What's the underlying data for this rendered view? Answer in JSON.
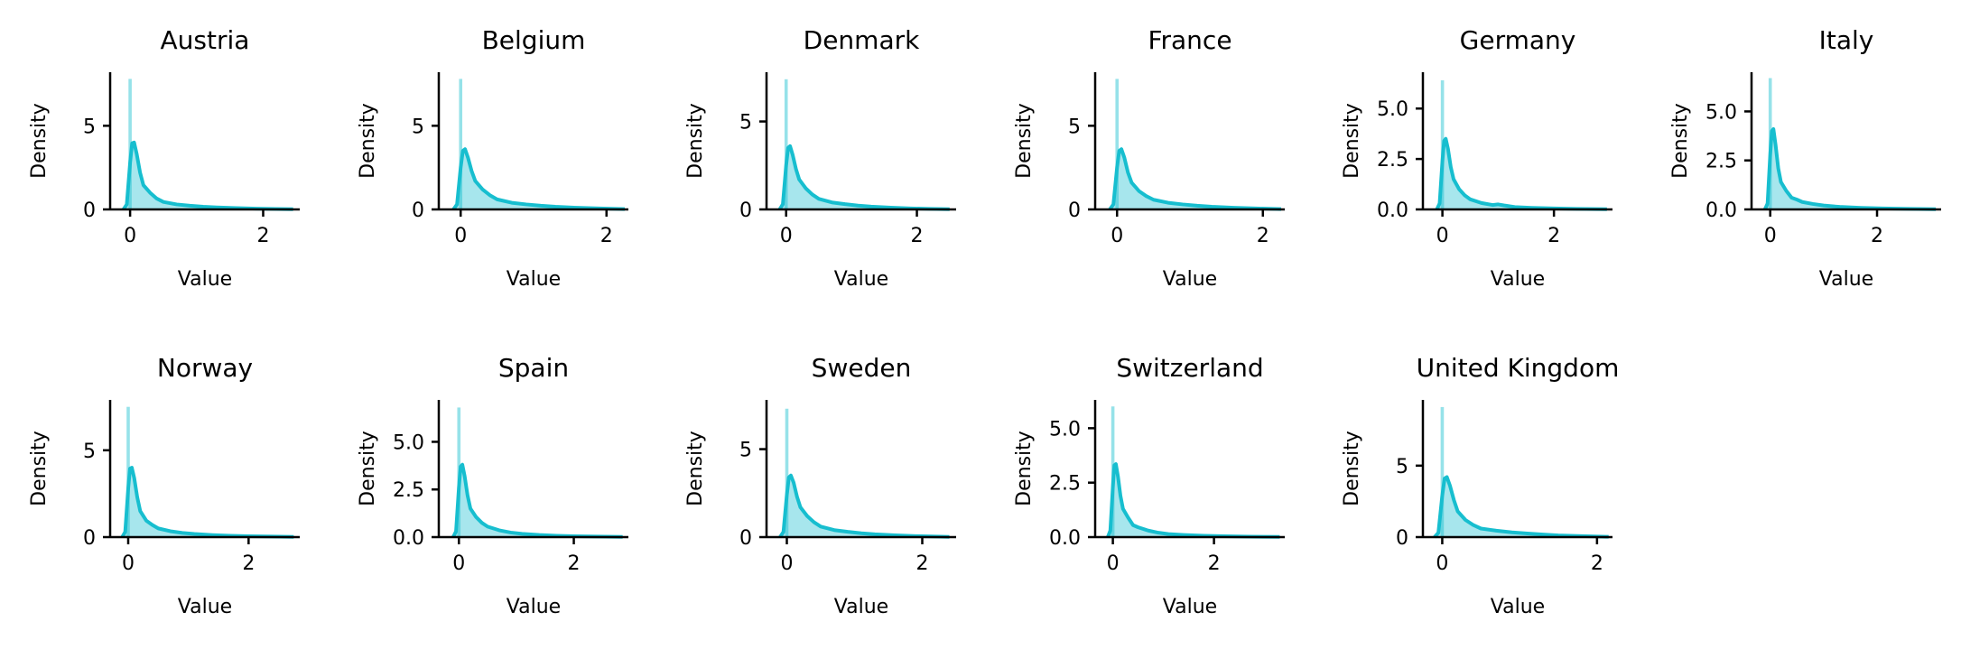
{
  "colors": {
    "line": "#17becf",
    "fill": "#17becf",
    "spike": "#17becf"
  },
  "chart_data": [
    {
      "type": "area",
      "title": "Austria",
      "xlabel": "Value",
      "ylabel": "Density",
      "xlim": [
        -0.3,
        2.55
      ],
      "ylim": [
        0,
        8.2
      ],
      "xticks": [
        0,
        2
      ],
      "yticks": [
        0,
        5
      ],
      "ytick_labels": [
        "0",
        "5"
      ],
      "x_max": 2.45,
      "peak": 4.0,
      "spike": 7.8,
      "curve": {
        "x": [
          -0.1,
          -0.05,
          0,
          0.03,
          0.06,
          0.1,
          0.15,
          0.2,
          0.3,
          0.4,
          0.5,
          0.7,
          0.9,
          1.1,
          1.3,
          1.6,
          1.9,
          2.2,
          2.45
        ],
        "y": [
          0,
          0.3,
          2.8,
          3.95,
          4.0,
          3.3,
          2.2,
          1.45,
          1.0,
          0.65,
          0.45,
          0.3,
          0.22,
          0.16,
          0.12,
          0.08,
          0.05,
          0.03,
          0.01
        ]
      }
    },
    {
      "type": "area",
      "title": "Belgium",
      "xlabel": "Value",
      "ylabel": "Density",
      "xlim": [
        -0.3,
        2.3
      ],
      "ylim": [
        0,
        8.2
      ],
      "xticks": [
        0,
        2
      ],
      "yticks": [
        0,
        5
      ],
      "ytick_labels": [
        "0",
        "5"
      ],
      "x_max": 2.25,
      "peak": 3.6,
      "spike": 7.8,
      "curve": {
        "x": [
          -0.1,
          -0.05,
          0,
          0.03,
          0.06,
          0.1,
          0.15,
          0.2,
          0.3,
          0.4,
          0.5,
          0.7,
          0.9,
          1.1,
          1.3,
          1.6,
          1.9,
          2.25
        ],
        "y": [
          0,
          0.3,
          2.5,
          3.5,
          3.6,
          3.1,
          2.3,
          1.7,
          1.2,
          0.85,
          0.6,
          0.4,
          0.3,
          0.22,
          0.16,
          0.1,
          0.06,
          0.02
        ]
      }
    },
    {
      "type": "area",
      "title": "Denmark",
      "xlabel": "Value",
      "ylabel": "Density",
      "xlim": [
        -0.3,
        2.6
      ],
      "ylim": [
        0,
        7.8
      ],
      "xticks": [
        0,
        2
      ],
      "yticks": [
        0,
        5
      ],
      "ytick_labels": [
        "0",
        "5"
      ],
      "x_max": 2.5,
      "peak": 3.6,
      "spike": 7.4,
      "curve": {
        "x": [
          -0.1,
          -0.05,
          0,
          0.03,
          0.06,
          0.1,
          0.15,
          0.2,
          0.3,
          0.4,
          0.5,
          0.7,
          0.9,
          1.1,
          1.3,
          1.6,
          1.9,
          2.2,
          2.5
        ],
        "y": [
          0,
          0.3,
          2.5,
          3.5,
          3.6,
          3.1,
          2.3,
          1.7,
          1.2,
          0.85,
          0.6,
          0.4,
          0.3,
          0.22,
          0.16,
          0.1,
          0.06,
          0.03,
          0.01
        ]
      }
    },
    {
      "type": "area",
      "title": "France",
      "xlabel": "Value",
      "ylabel": "Density",
      "xlim": [
        -0.3,
        2.3
      ],
      "ylim": [
        0,
        8.2
      ],
      "xticks": [
        0,
        2
      ],
      "yticks": [
        0,
        5
      ],
      "ytick_labels": [
        "0",
        "5"
      ],
      "x_max": 2.25,
      "peak": 3.6,
      "spike": 7.8,
      "curve": {
        "x": [
          -0.1,
          -0.05,
          0,
          0.03,
          0.06,
          0.1,
          0.15,
          0.2,
          0.3,
          0.4,
          0.5,
          0.7,
          0.9,
          1.1,
          1.3,
          1.6,
          1.9,
          2.25
        ],
        "y": [
          0,
          0.3,
          2.5,
          3.5,
          3.6,
          3.1,
          2.2,
          1.6,
          1.1,
          0.8,
          0.58,
          0.4,
          0.3,
          0.22,
          0.16,
          0.1,
          0.06,
          0.02
        ]
      }
    },
    {
      "type": "area",
      "title": "Germany",
      "xlabel": "Value",
      "ylabel": "Density",
      "xlim": [
        -0.35,
        3.05
      ],
      "ylim": [
        0,
        6.8
      ],
      "xticks": [
        0,
        2
      ],
      "yticks": [
        0,
        2.5,
        5
      ],
      "ytick_labels": [
        "0.0",
        "2.5",
        "5.0"
      ],
      "x_max": 2.95,
      "peak": 3.5,
      "spike": 6.4,
      "curve": {
        "x": [
          -0.1,
          -0.05,
          0,
          0.03,
          0.06,
          0.1,
          0.15,
          0.2,
          0.3,
          0.4,
          0.5,
          0.7,
          0.9,
          1.0,
          1.1,
          1.3,
          1.6,
          2.0,
          2.4,
          2.95
        ],
        "y": [
          0,
          0.3,
          2.4,
          3.4,
          3.5,
          3.0,
          2.1,
          1.5,
          1.0,
          0.7,
          0.5,
          0.32,
          0.22,
          0.25,
          0.2,
          0.12,
          0.08,
          0.05,
          0.03,
          0.01
        ]
      }
    },
    {
      "type": "area",
      "title": "Italy",
      "xlabel": "Value",
      "ylabel": "Density",
      "xlim": [
        -0.35,
        3.2
      ],
      "ylim": [
        0,
        7.0
      ],
      "xticks": [
        0,
        2
      ],
      "yticks": [
        0,
        2.5,
        5
      ],
      "ytick_labels": [
        "0.0",
        "2.5",
        "5.0"
      ],
      "x_max": 3.1,
      "peak": 4.1,
      "spike": 6.7,
      "curve": {
        "x": [
          -0.1,
          -0.05,
          0,
          0.03,
          0.06,
          0.1,
          0.15,
          0.2,
          0.3,
          0.4,
          0.5,
          0.6,
          0.8,
          1.0,
          1.3,
          1.7,
          2.1,
          2.6,
          3.1
        ],
        "y": [
          0,
          0.3,
          2.8,
          4.0,
          4.1,
          3.3,
          2.1,
          1.4,
          0.95,
          0.6,
          0.5,
          0.38,
          0.28,
          0.2,
          0.13,
          0.08,
          0.05,
          0.03,
          0.01
        ]
      }
    },
    {
      "type": "area",
      "title": "Norway",
      "xlabel": "Value",
      "ylabel": "Density",
      "xlim": [
        -0.3,
        2.85
      ],
      "ylim": [
        0,
        7.9
      ],
      "xticks": [
        0,
        2
      ],
      "yticks": [
        0,
        5
      ],
      "ytick_labels": [
        "0",
        "5"
      ],
      "x_max": 2.75,
      "peak": 4.0,
      "spike": 7.5,
      "curve": {
        "x": [
          -0.1,
          -0.05,
          0,
          0.03,
          0.06,
          0.1,
          0.15,
          0.2,
          0.3,
          0.4,
          0.5,
          0.7,
          0.9,
          1.1,
          1.4,
          1.7,
          2.0,
          2.4,
          2.75
        ],
        "y": [
          0,
          0.3,
          2.8,
          3.95,
          4.0,
          3.4,
          2.3,
          1.5,
          0.95,
          0.7,
          0.5,
          0.34,
          0.24,
          0.18,
          0.12,
          0.08,
          0.05,
          0.03,
          0.01
        ]
      }
    },
    {
      "type": "area",
      "title": "Spain",
      "xlabel": "Value",
      "ylabel": "Density",
      "xlim": [
        -0.35,
        2.95
      ],
      "ylim": [
        0,
        7.2
      ],
      "xticks": [
        0,
        2
      ],
      "yticks": [
        0,
        2.5,
        5
      ],
      "ytick_labels": [
        "0.0",
        "2.5",
        "5.0"
      ],
      "x_max": 2.85,
      "peak": 3.8,
      "spike": 6.8,
      "curve": {
        "x": [
          -0.1,
          -0.05,
          0,
          0.03,
          0.06,
          0.1,
          0.15,
          0.2,
          0.3,
          0.4,
          0.5,
          0.7,
          0.9,
          1.1,
          1.4,
          1.7,
          2.0,
          2.4,
          2.85
        ],
        "y": [
          0,
          0.3,
          2.6,
          3.7,
          3.8,
          3.2,
          2.2,
          1.5,
          1.05,
          0.75,
          0.55,
          0.36,
          0.24,
          0.17,
          0.11,
          0.07,
          0.05,
          0.03,
          0.01
        ]
      }
    },
    {
      "type": "area",
      "title": "Sweden",
      "xlabel": "Value",
      "ylabel": "Density",
      "xlim": [
        -0.3,
        2.5
      ],
      "ylim": [
        0,
        7.8
      ],
      "xticks": [
        0,
        2
      ],
      "yticks": [
        0,
        5
      ],
      "ytick_labels": [
        "0",
        "5"
      ],
      "x_max": 2.4,
      "peak": 3.5,
      "spike": 7.3,
      "curve": {
        "x": [
          -0.1,
          -0.05,
          0,
          0.03,
          0.06,
          0.1,
          0.15,
          0.2,
          0.3,
          0.4,
          0.5,
          0.7,
          0.9,
          1.1,
          1.3,
          1.6,
          1.9,
          2.2,
          2.4
        ],
        "y": [
          0,
          0.3,
          2.4,
          3.4,
          3.5,
          3.1,
          2.3,
          1.7,
          1.2,
          0.85,
          0.6,
          0.4,
          0.3,
          0.22,
          0.16,
          0.1,
          0.06,
          0.03,
          0.01
        ]
      }
    },
    {
      "type": "area",
      "title": "Switzerland",
      "xlabel": "Value",
      "ylabel": "Density",
      "xlim": [
        -0.35,
        3.4
      ],
      "ylim": [
        0,
        6.3
      ],
      "xticks": [
        0,
        2
      ],
      "yticks": [
        0,
        2.5,
        5
      ],
      "ytick_labels": [
        "0.0",
        "2.5",
        "5.0"
      ],
      "x_max": 3.3,
      "peak": 3.35,
      "spike": 6.0,
      "curve": {
        "x": [
          -0.1,
          -0.05,
          0,
          0.03,
          0.06,
          0.1,
          0.15,
          0.2,
          0.3,
          0.4,
          0.5,
          0.7,
          0.9,
          1.1,
          1.4,
          1.8,
          2.2,
          2.7,
          3.3
        ],
        "y": [
          0,
          0.3,
          2.3,
          3.3,
          3.35,
          2.8,
          1.9,
          1.3,
          0.9,
          0.55,
          0.45,
          0.3,
          0.2,
          0.14,
          0.1,
          0.06,
          0.04,
          0.02,
          0.01
        ]
      }
    },
    {
      "type": "area",
      "title": "United Kingdom",
      "xlabel": "Value",
      "ylabel": "Density",
      "xlim": [
        -0.25,
        2.2
      ],
      "ylim": [
        0,
        9.6
      ],
      "xticks": [
        0,
        2
      ],
      "yticks": [
        0,
        5
      ],
      "ytick_labels": [
        "0",
        "5"
      ],
      "x_max": 2.15,
      "peak": 4.2,
      "spike": 9.1,
      "curve": {
        "x": [
          -0.1,
          -0.05,
          0,
          0.03,
          0.06,
          0.1,
          0.15,
          0.2,
          0.3,
          0.4,
          0.5,
          0.7,
          0.9,
          1.1,
          1.3,
          1.5,
          1.8,
          2.15
        ],
        "y": [
          0,
          0.3,
          2.9,
          4.1,
          4.2,
          3.6,
          2.6,
          1.8,
          1.2,
          0.85,
          0.6,
          0.45,
          0.33,
          0.25,
          0.18,
          0.12,
          0.07,
          0.02
        ]
      }
    }
  ]
}
